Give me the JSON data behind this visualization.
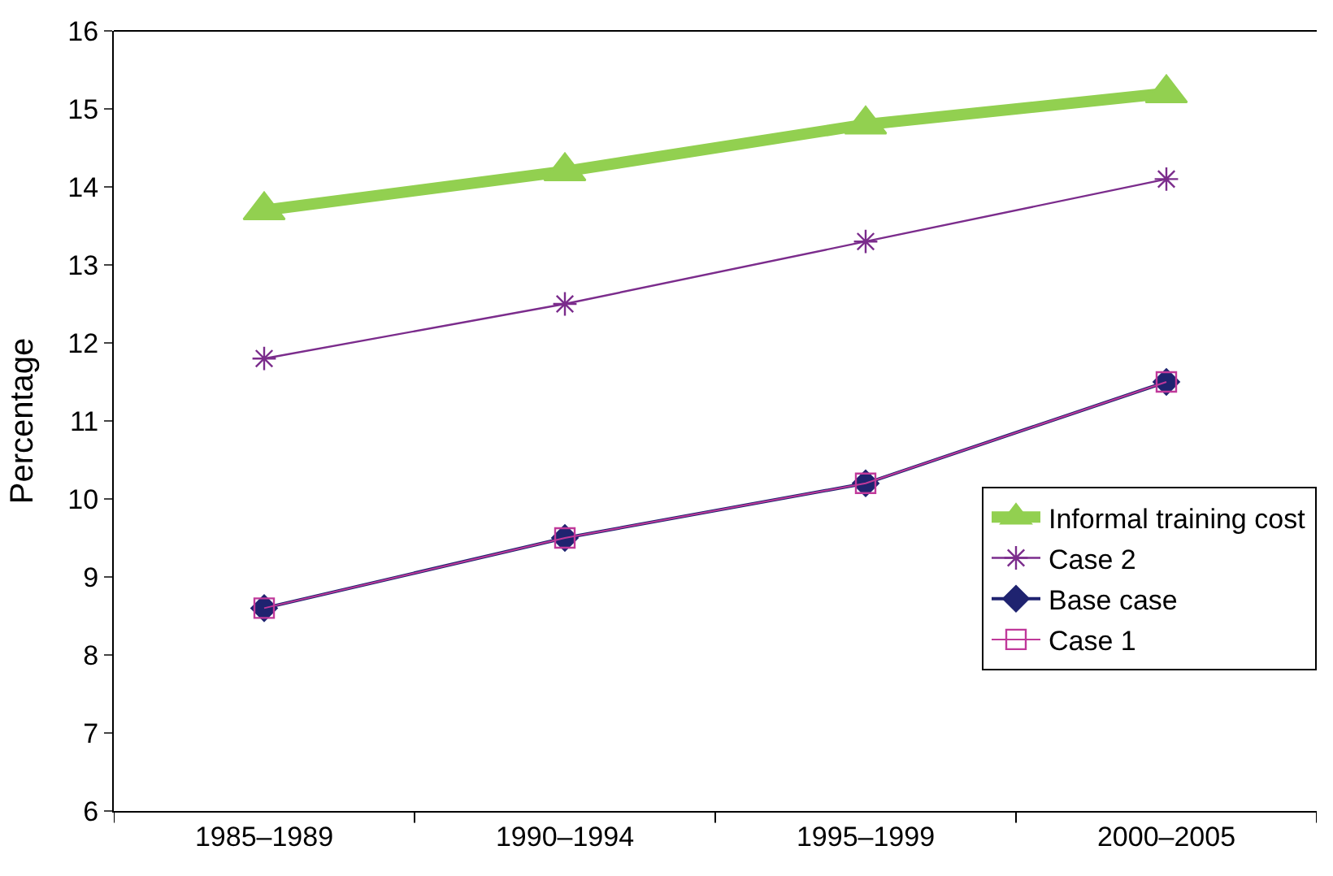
{
  "chart_data": {
    "type": "line",
    "ylabel": "Percentage",
    "categories": [
      "1985–1989",
      "1990–1994",
      "1995–1999",
      "2000–2005"
    ],
    "series": [
      {
        "name": "Informal training cost",
        "color": "#92d050",
        "values": [
          13.7,
          14.2,
          14.8,
          15.2
        ],
        "marker": "triangle"
      },
      {
        "name": "Case 2",
        "color": "#7b2c8c",
        "values": [
          11.8,
          12.5,
          13.3,
          14.1
        ],
        "marker": "cross"
      },
      {
        "name": "Base case",
        "color": "#1f2370",
        "values": [
          8.6,
          9.5,
          10.2,
          11.5
        ],
        "marker": "diamond"
      },
      {
        "name": "Case 1",
        "color": "#c0399a",
        "values": [
          8.6,
          9.5,
          10.2,
          11.5
        ],
        "marker": "square"
      }
    ],
    "ylim": [
      6,
      16
    ],
    "yticks": [
      6,
      7,
      8,
      9,
      10,
      11,
      12,
      13,
      14,
      15,
      16
    ],
    "legend": "bottom right"
  }
}
